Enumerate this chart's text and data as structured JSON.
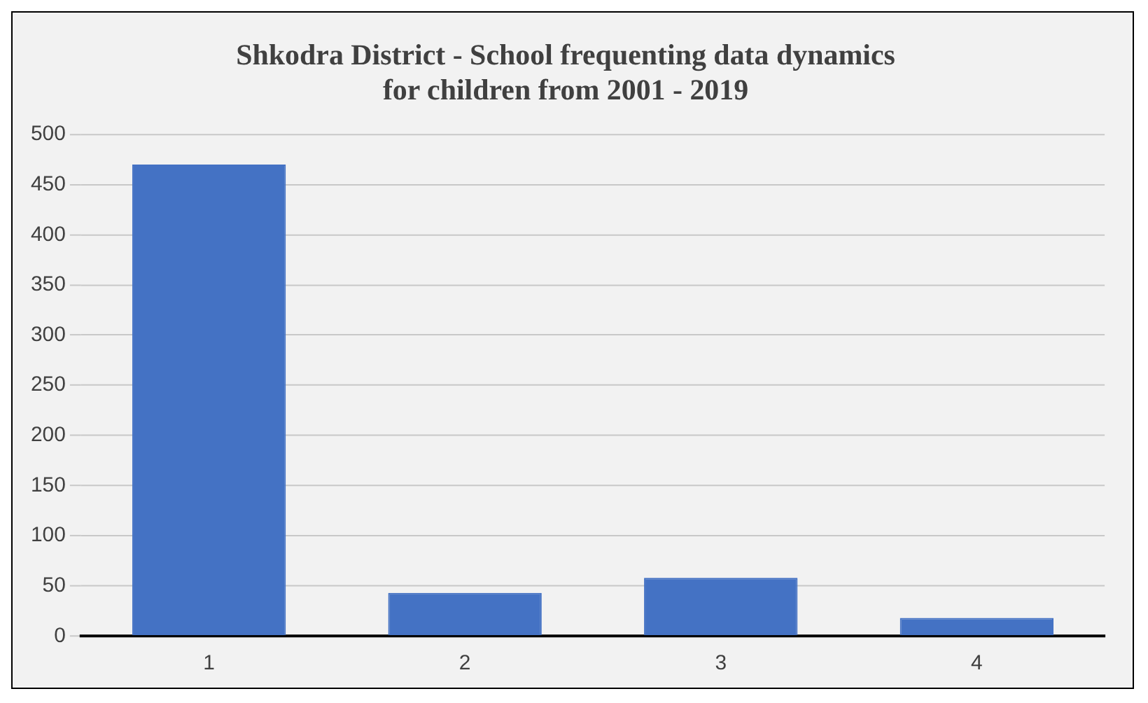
{
  "chart_data": {
    "type": "bar",
    "title": [
      "Shkodra District - School frequenting data dynamics",
      "for children from 2001 - 2019"
    ],
    "categories": [
      "1",
      "2",
      "3",
      "4"
    ],
    "values": [
      470,
      43,
      58,
      18
    ],
    "color": "#4472c4",
    "ylim": [
      0,
      500
    ],
    "yticks": [
      0,
      50,
      100,
      150,
      200,
      250,
      300,
      350,
      400,
      450,
      500
    ],
    "grid": "y"
  }
}
